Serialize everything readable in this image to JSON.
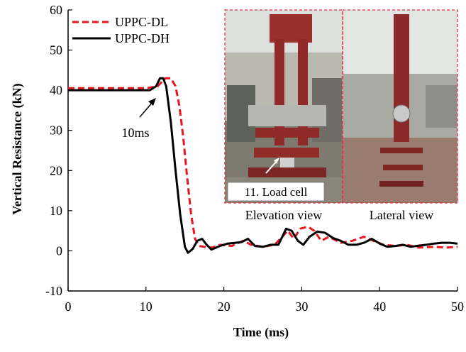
{
  "chart_data": {
    "type": "line",
    "title": "",
    "xlabel": "Time (ms)",
    "ylabel": "Vertical Resistance (kN)",
    "xlim": [
      0,
      50
    ],
    "ylim": [
      -10,
      60
    ],
    "xticks": [
      0,
      10,
      20,
      30,
      40,
      50
    ],
    "yticks": [
      -10,
      0,
      10,
      20,
      30,
      40,
      50,
      60
    ],
    "grid": false,
    "legend_position": "top-left",
    "series": [
      {
        "name": "UPPC-DL",
        "color": "#e8141e",
        "style": "dashed",
        "points": [
          [
            0,
            40.5
          ],
          [
            10,
            40.5
          ],
          [
            11.5,
            41
          ],
          [
            12.5,
            43
          ],
          [
            13.2,
            43
          ],
          [
            13.8,
            41
          ],
          [
            14.3,
            36
          ],
          [
            14.8,
            28
          ],
          [
            15.3,
            18
          ],
          [
            15.8,
            9
          ],
          [
            16.3,
            3
          ],
          [
            16.8,
            1.2
          ],
          [
            17.5,
            1
          ],
          [
            18.5,
            0.8
          ],
          [
            19.5,
            1.5
          ],
          [
            21,
            1.2
          ],
          [
            22.5,
            2.5
          ],
          [
            23.5,
            1.5
          ],
          [
            25,
            1
          ],
          [
            26.5,
            1.5
          ],
          [
            27.5,
            3.5
          ],
          [
            28.2,
            5
          ],
          [
            29,
            3
          ],
          [
            29.8,
            5.5
          ],
          [
            30.8,
            6
          ],
          [
            31.6,
            5
          ],
          [
            32.5,
            2.5
          ],
          [
            33.5,
            3.5
          ],
          [
            35,
            2
          ],
          [
            36.5,
            2.5
          ],
          [
            38,
            3.5
          ],
          [
            39.2,
            2.5
          ],
          [
            40.5,
            1.5
          ],
          [
            42,
            1.2
          ],
          [
            43.5,
            1.5
          ],
          [
            45,
            0.8
          ],
          [
            47,
            1
          ],
          [
            48.5,
            0.8
          ],
          [
            50,
            1
          ]
        ]
      },
      {
        "name": "UPPC-DH",
        "color": "#000000",
        "style": "solid",
        "points": [
          [
            0,
            40
          ],
          [
            10.5,
            40
          ],
          [
            11.3,
            41
          ],
          [
            11.8,
            43
          ],
          [
            12.2,
            43
          ],
          [
            12.6,
            41
          ],
          [
            13.2,
            32
          ],
          [
            13.8,
            20
          ],
          [
            14.4,
            9
          ],
          [
            15,
            1
          ],
          [
            15.4,
            -0.5
          ],
          [
            16,
            0.5
          ],
          [
            16.6,
            2.5
          ],
          [
            17.2,
            3
          ],
          [
            17.8,
            1.5
          ],
          [
            18.4,
            0.3
          ],
          [
            19.5,
            1.2
          ],
          [
            20.5,
            1.8
          ],
          [
            21.5,
            2
          ],
          [
            22.3,
            2.2
          ],
          [
            23.1,
            3
          ],
          [
            24,
            1.2
          ],
          [
            25,
            1
          ],
          [
            26,
            1.5
          ],
          [
            27,
            1.5
          ],
          [
            28,
            5.5
          ],
          [
            28.7,
            5
          ],
          [
            29.5,
            2.5
          ],
          [
            30.2,
            1.5
          ],
          [
            31,
            3.5
          ],
          [
            32,
            4.8
          ],
          [
            33,
            4.5
          ],
          [
            34,
            3.2
          ],
          [
            35,
            2.5
          ],
          [
            36,
            1.5
          ],
          [
            37,
            1.5
          ],
          [
            38,
            2
          ],
          [
            39,
            3
          ],
          [
            40,
            1.8
          ],
          [
            41,
            1
          ],
          [
            42,
            1.2
          ],
          [
            43,
            1.5
          ],
          [
            44,
            1
          ],
          [
            45,
            1.3
          ],
          [
            46,
            1.5
          ],
          [
            47,
            1.8
          ],
          [
            48,
            2
          ],
          [
            49,
            2
          ],
          [
            50,
            1.8
          ]
        ]
      }
    ],
    "annotations": [
      {
        "text": "10ms"
      },
      {
        "text": "11. Load cell"
      },
      {
        "text": "Elevation  view"
      },
      {
        "text": "Lateral view"
      }
    ]
  },
  "photo_colors": {
    "sky": "#d6d8d4",
    "frame_red": "#8c2a2a",
    "floor": "#8a8578",
    "border": "#e0303a"
  }
}
